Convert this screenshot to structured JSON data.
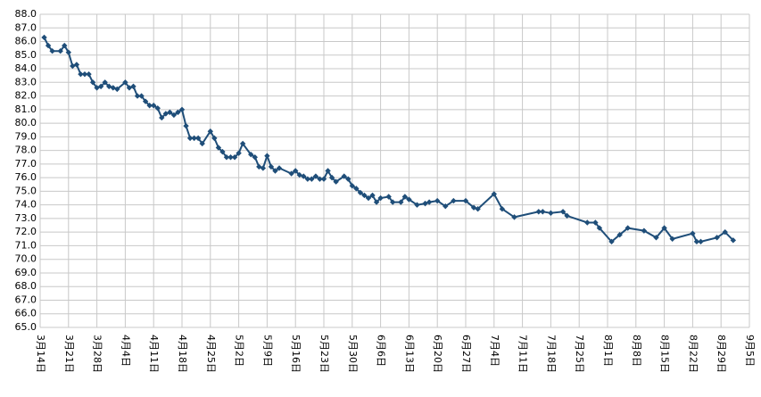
{
  "chart_data": {
    "type": "line",
    "color": "#1f4e79",
    "grid": true,
    "x": [
      "3月15日",
      "3月16日",
      "3月17日",
      "3月19日",
      "3月20日",
      "3月21日",
      "3月22日",
      "3月23日",
      "3月24日",
      "3月25日",
      "3月26日",
      "3月27日",
      "3月28日",
      "3月29日",
      "3月30日",
      "3月31日",
      "4月1日",
      "4月2日",
      "4月4日",
      "4月5日",
      "4月6日",
      "4月7日",
      "4月8日",
      "4月9日",
      "4月10日",
      "4月11日",
      "4月12日",
      "4月13日",
      "4月14日",
      "4月15日",
      "4月16日",
      "4月17日",
      "4月18日",
      "4月19日",
      "4月20日",
      "4月21日",
      "4月22日",
      "4月23日",
      "4月25日",
      "4月26日",
      "4月27日",
      "4月28日",
      "4月29日",
      "4月30日",
      "5月1日",
      "5月2日",
      "5月3日",
      "5月5日",
      "5月6日",
      "5月7日",
      "5月8日",
      "5月9日",
      "5月10日",
      "5月11日",
      "5月12日",
      "5月15日",
      "5月16日",
      "5月17日",
      "5月18日",
      "5月19日",
      "5月20日",
      "5月21日",
      "5月22日",
      "5月23日",
      "5月24日",
      "5月25日",
      "5月26日",
      "5月28日",
      "5月29日",
      "5月30日",
      "5月31日",
      "6月1日",
      "6月2日",
      "6月3日",
      "6月4日",
      "6月5日",
      "6月6日",
      "6月8日",
      "6月9日",
      "6月11日",
      "6月12日",
      "6月13日",
      "6月15日",
      "6月17日",
      "6月18日",
      "6月20日",
      "6月22日",
      "6月24日",
      "6月27日",
      "6月29日",
      "6月30日",
      "7月4日",
      "7月6日",
      "7月9日",
      "7月15日",
      "7月16日",
      "7月18日",
      "7月21日",
      "7月22日",
      "7月27日",
      "7月29日",
      "7月30日",
      "8月2日",
      "8月4日",
      "8月6日",
      "8月10日",
      "8月13日",
      "8月15日",
      "8月17日",
      "8月22日",
      "8月23日",
      "8月24日",
      "8月28日",
      "8月30日",
      "9月1日"
    ],
    "values": [
      86.3,
      85.7,
      85.3,
      85.3,
      85.7,
      85.2,
      84.2,
      84.3,
      83.6,
      83.6,
      83.6,
      83.0,
      82.6,
      82.7,
      83.0,
      82.7,
      82.6,
      82.5,
      83.0,
      82.6,
      82.7,
      82.0,
      82.0,
      81.6,
      81.3,
      81.3,
      81.1,
      80.4,
      80.7,
      80.8,
      80.6,
      80.8,
      81.0,
      79.8,
      78.9,
      78.9,
      78.9,
      78.5,
      79.4,
      78.9,
      78.2,
      77.9,
      77.5,
      77.5,
      77.5,
      77.8,
      78.5,
      77.7,
      77.5,
      76.8,
      76.7,
      77.6,
      76.8,
      76.5,
      76.7,
      76.3,
      76.5,
      76.2,
      76.1,
      75.9,
      75.9,
      76.1,
      75.9,
      75.9,
      76.5,
      76.0,
      75.7,
      76.1,
      75.9,
      75.4,
      75.2,
      74.9,
      74.7,
      74.5,
      74.7,
      74.2,
      74.5,
      74.6,
      74.2,
      74.2,
      74.6,
      74.4,
      74.0,
      74.1,
      74.2,
      74.3,
      73.9,
      74.3,
      74.3,
      73.8,
      73.7,
      74.8,
      73.7,
      73.1,
      73.5,
      73.5,
      73.4,
      73.5,
      73.2,
      72.7,
      72.7,
      72.3,
      71.3,
      71.8,
      72.3,
      72.1,
      71.6,
      72.3,
      71.5,
      71.9,
      71.3,
      71.3,
      71.6,
      72.0,
      71.4
    ],
    "xlim": [
      "3月14日",
      "9月5日"
    ],
    "xticks": [
      "3月14日",
      "3月21日",
      "3月28日",
      "4月4日",
      "4月11日",
      "4月18日",
      "4月25日",
      "5月2日",
      "5月9日",
      "5月16日",
      "5月23日",
      "5月30日",
      "6月6日",
      "6月13日",
      "6月20日",
      "6月27日",
      "7月4日",
      "7月11日",
      "7月18日",
      "7月25日",
      "8月1日",
      "8月8日",
      "8月15日",
      "8月22日",
      "8月29日",
      "9月5日"
    ],
    "ylim": [
      65,
      88
    ],
    "yticks": [
      {
        "value": 65,
        "label": "65.0"
      },
      {
        "value": 66,
        "label": "66.0"
      },
      {
        "value": 67,
        "label": "67.0"
      },
      {
        "value": 68,
        "label": "68.0"
      },
      {
        "value": 69,
        "label": "69.0"
      },
      {
        "value": 70,
        "label": "70.0"
      },
      {
        "value": 71,
        "label": "71.0"
      },
      {
        "value": 72,
        "label": "72.0"
      },
      {
        "value": 73,
        "label": "73.0"
      },
      {
        "value": 74,
        "label": "74.0"
      },
      {
        "value": 75,
        "label": "75.0"
      },
      {
        "value": 76,
        "label": "76.0"
      },
      {
        "value": 77,
        "label": "77.0"
      },
      {
        "value": 78,
        "label": "78.0"
      },
      {
        "value": 79,
        "label": "79.0"
      },
      {
        "value": 80,
        "label": "80.0"
      },
      {
        "value": 81,
        "label": "81.0"
      },
      {
        "value": 82,
        "label": "82.0"
      },
      {
        "value": 83,
        "label": "83.0"
      },
      {
        "value": 84,
        "label": "84.0"
      },
      {
        "value": 85,
        "label": "85.0"
      },
      {
        "value": 86,
        "label": "86.0"
      },
      {
        "value": 87,
        "label": "87.0"
      },
      {
        "value": 88,
        "label": "88.0"
      }
    ]
  }
}
